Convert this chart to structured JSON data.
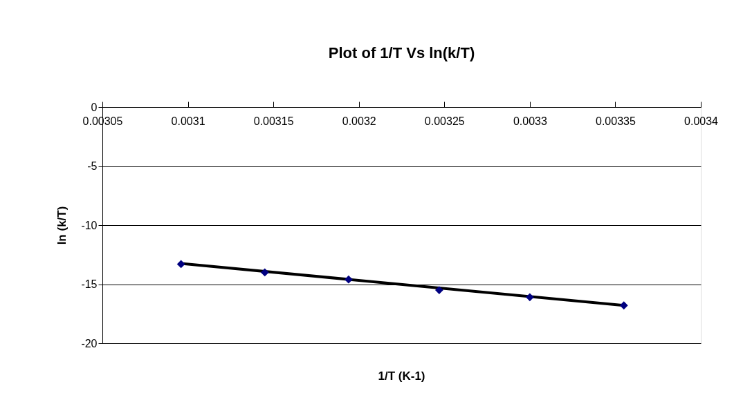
{
  "chart_data": {
    "type": "scatter",
    "title": "Plot of 1/T Vs ln(k/T)",
    "xlabel": "1/T (K-1)",
    "ylabel": "ln (k/T)",
    "x": [
      0.003096,
      0.003145,
      0.003194,
      0.003247,
      0.0033,
      0.003355
    ],
    "series": [
      {
        "color": "#000080",
        "values": [
          -13.3,
          -14.0,
          -14.6,
          -15.5,
          -16.1,
          -16.8
        ],
        "marker": "diamond"
      },
      {
        "type": "line",
        "color": "#000000",
        "x": [
          0.003096,
          0.003355
        ],
        "values": [
          -13.25,
          -16.8
        ]
      }
    ],
    "xlim": [
      0.00305,
      0.0034
    ],
    "xticks": [
      0.00305,
      0.0031,
      0.00315,
      0.0032,
      0.00325,
      0.0033,
      0.00335,
      0.0034
    ],
    "ylim": [
      -20,
      0
    ],
    "yticks": [
      -20,
      -15,
      -10,
      -5,
      0
    ],
    "grid": "y"
  }
}
